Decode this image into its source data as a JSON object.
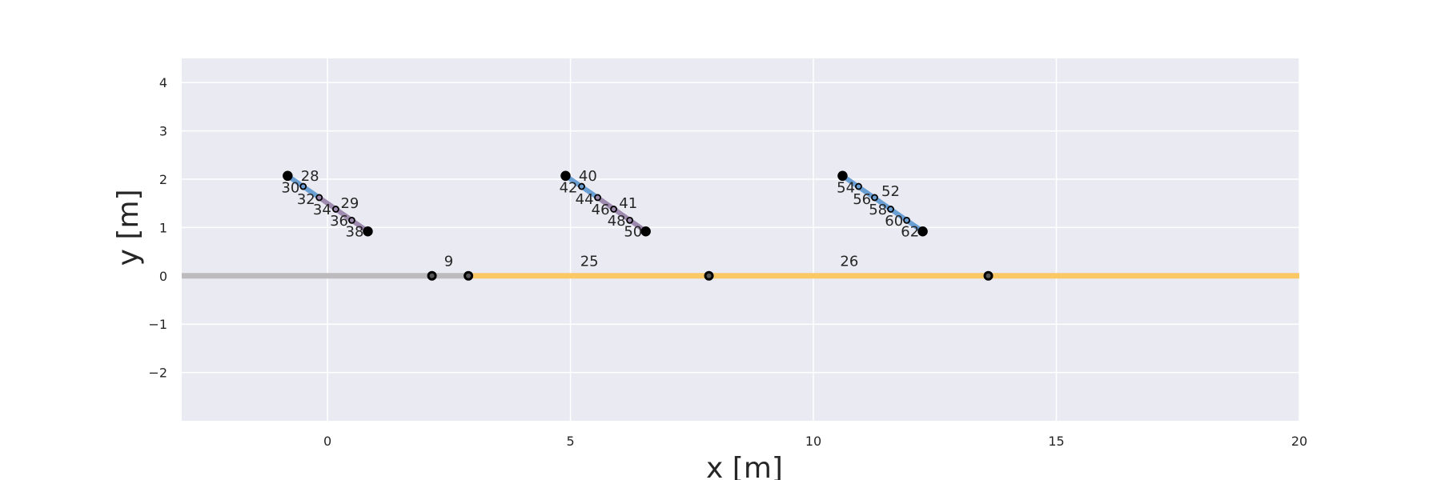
{
  "chart_data": {
    "type": "scatter",
    "title": "",
    "xlabel": "x [m]",
    "ylabel": "y [m]",
    "xlim": [
      -3,
      20
    ],
    "ylim": [
      -3,
      4.5
    ],
    "x_ticks": [
      0,
      5,
      10,
      15,
      20
    ],
    "x_tick_labels": [
      "0",
      "5",
      "10",
      "15",
      "20"
    ],
    "y_ticks": [
      -2,
      -1,
      0,
      1,
      2,
      3,
      4
    ],
    "y_tick_labels": [
      "−2",
      "−1",
      "0",
      "1",
      "2",
      "3",
      "4"
    ],
    "grid": true,
    "colors": {
      "plot_bg": "#eaeaf2",
      "grid": "#ffffff",
      "road_gray": "#bdbbbd",
      "road_orange": "#fac864",
      "segment_blue": "#6a9fd4",
      "segment_purple": "#9d8aae",
      "node": "#000000"
    },
    "road_segments": [
      {
        "x": [
          -3,
          2.9
        ],
        "y": [
          0,
          0
        ],
        "color": "road_gray"
      },
      {
        "x": [
          2.9,
          20
        ],
        "y": [
          0,
          0
        ],
        "color": "road_orange"
      }
    ],
    "road_nodes": [
      {
        "x": 2.15,
        "y": 0
      },
      {
        "x": 2.9,
        "y": 0
      },
      {
        "x": 7.85,
        "y": 0
      },
      {
        "x": 13.6,
        "y": 0
      }
    ],
    "road_labels": [
      {
        "text": "9",
        "x": 2.4,
        "y": 0.2
      },
      {
        "text": "25",
        "x": 5.2,
        "y": 0.2
      },
      {
        "text": "26",
        "x": 10.55,
        "y": 0.2
      }
    ],
    "groups": [
      {
        "start": [
          -0.82,
          2.07
        ],
        "end": [
          0.83,
          0.92
        ],
        "nodes": [
          [
            -0.82,
            2.07
          ],
          [
            -0.5,
            1.85
          ],
          [
            -0.17,
            1.62
          ],
          [
            0.17,
            1.38
          ],
          [
            0.5,
            1.15
          ],
          [
            0.83,
            0.92
          ]
        ],
        "segments": [
          {
            "from": [
              -0.82,
              2.07
            ],
            "to": [
              -0.17,
              1.62
            ],
            "color": "segment_blue"
          },
          {
            "from": [
              -0.17,
              1.62
            ],
            "to": [
              0.83,
              0.92
            ],
            "color": "segment_purple"
          }
        ],
        "labels": [
          {
            "text": "28",
            "x": -0.55,
            "y": 1.97
          },
          {
            "text": "30",
            "x": -0.95,
            "y": 1.73
          },
          {
            "text": "32",
            "x": -0.63,
            "y": 1.49
          },
          {
            "text": "34",
            "x": -0.3,
            "y": 1.27
          },
          {
            "text": "29",
            "x": 0.27,
            "y": 1.4
          },
          {
            "text": "36",
            "x": 0.05,
            "y": 1.04
          },
          {
            "text": "38",
            "x": 0.37,
            "y": 0.82
          }
        ]
      },
      {
        "start": [
          4.9,
          2.07
        ],
        "end": [
          6.55,
          0.92
        ],
        "nodes": [
          [
            4.9,
            2.07
          ],
          [
            5.23,
            1.85
          ],
          [
            5.56,
            1.62
          ],
          [
            5.89,
            1.38
          ],
          [
            6.22,
            1.15
          ],
          [
            6.55,
            0.92
          ]
        ],
        "segments": [
          {
            "from": [
              4.9,
              2.07
            ],
            "to": [
              5.56,
              1.62
            ],
            "color": "segment_blue"
          },
          {
            "from": [
              5.56,
              1.62
            ],
            "to": [
              6.55,
              0.92
            ],
            "color": "segment_purple"
          }
        ],
        "labels": [
          {
            "text": "40",
            "x": 5.17,
            "y": 1.97
          },
          {
            "text": "42",
            "x": 4.77,
            "y": 1.73
          },
          {
            "text": "44",
            "x": 5.1,
            "y": 1.49
          },
          {
            "text": "46",
            "x": 5.43,
            "y": 1.27
          },
          {
            "text": "41",
            "x": 6.0,
            "y": 1.4
          },
          {
            "text": "48",
            "x": 5.76,
            "y": 1.04
          },
          {
            "text": "50",
            "x": 6.1,
            "y": 0.82
          }
        ]
      },
      {
        "start": [
          10.6,
          2.07
        ],
        "end": [
          12.25,
          0.92
        ],
        "nodes": [
          [
            10.6,
            2.07
          ],
          [
            10.93,
            1.85
          ],
          [
            11.26,
            1.62
          ],
          [
            11.59,
            1.38
          ],
          [
            11.92,
            1.15
          ],
          [
            12.25,
            0.92
          ]
        ],
        "segments": [
          {
            "from": [
              10.6,
              2.07
            ],
            "to": [
              12.25,
              0.92
            ],
            "color": "segment_blue"
          }
        ],
        "labels": [
          {
            "text": "52",
            "x": 11.4,
            "y": 1.65
          },
          {
            "text": "54",
            "x": 10.48,
            "y": 1.73
          },
          {
            "text": "56",
            "x": 10.81,
            "y": 1.49
          },
          {
            "text": "58",
            "x": 11.14,
            "y": 1.27
          },
          {
            "text": "60",
            "x": 11.47,
            "y": 1.04
          },
          {
            "text": "62",
            "x": 11.8,
            "y": 0.82
          }
        ]
      }
    ]
  }
}
